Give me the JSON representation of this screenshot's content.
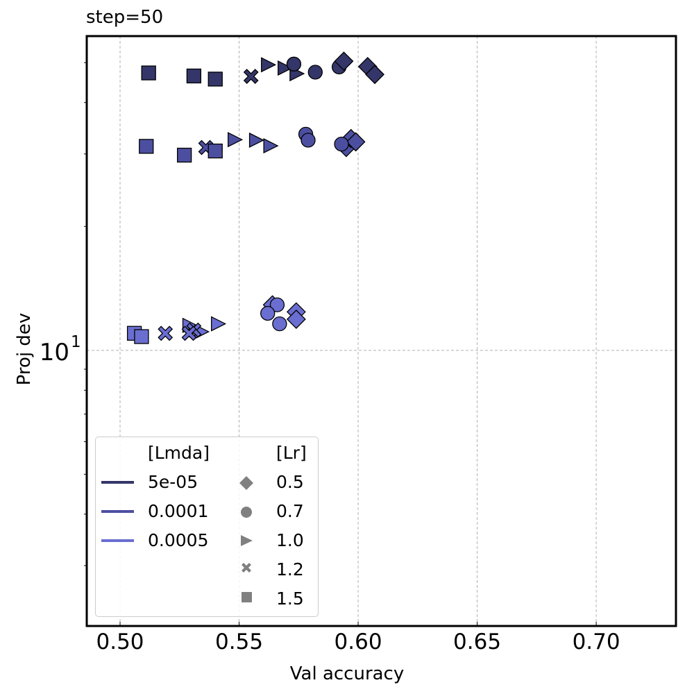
{
  "chart_data": {
    "type": "scatter",
    "title": "step=50",
    "xlabel": "Val accuracy",
    "ylabel": "Proj dev",
    "xlim": [
      0.486,
      0.7335
    ],
    "ylim": [
      2.14,
      58
    ],
    "yscale": "log",
    "xticks": [
      "0.50",
      "0.55",
      "0.60",
      "0.65",
      "0.70"
    ],
    "xtick_values": [
      0.5,
      0.55,
      0.6,
      0.65,
      0.7
    ],
    "yticks": [
      {
        "value": 10,
        "label": "10^1"
      }
    ],
    "grid": true,
    "legend_position": "lower left",
    "legend": {
      "color_title": "[Lmda]",
      "marker_title": "[Lr]",
      "colors": [
        {
          "label": "5e-05",
          "color": "#343669"
        },
        {
          "label": "0.0001",
          "color": "#4c4fa0"
        },
        {
          "label": "0.0005",
          "color": "#6a6ed0"
        }
      ],
      "markers": [
        {
          "label": "0.5",
          "marker": "diamond"
        },
        {
          "label": "0.7",
          "marker": "circle"
        },
        {
          "label": "1.0",
          "marker": "triangle-right"
        },
        {
          "label": "1.2",
          "marker": "x"
        },
        {
          "label": "1.5",
          "marker": "square"
        }
      ]
    },
    "series": [
      {
        "name": "5e-05",
        "color": "#343669",
        "points": [
          {
            "lr": "1.5",
            "marker": "square",
            "x": 0.512,
            "y": 47.2
          },
          {
            "lr": "1.5",
            "marker": "square",
            "x": 0.531,
            "y": 46.4
          },
          {
            "lr": "1.5",
            "marker": "square",
            "x": 0.54,
            "y": 45.6
          },
          {
            "lr": "1.2",
            "marker": "x",
            "x": 0.555,
            "y": 46.3
          },
          {
            "lr": "1.0",
            "marker": "triangle-right",
            "x": 0.562,
            "y": 49.4
          },
          {
            "lr": "1.0",
            "marker": "triangle-right",
            "x": 0.569,
            "y": 48.5
          },
          {
            "lr": "1.0",
            "marker": "triangle-right",
            "x": 0.574,
            "y": 47.0
          },
          {
            "lr": "0.7",
            "marker": "circle",
            "x": 0.573,
            "y": 49.6
          },
          {
            "lr": "0.7",
            "marker": "circle",
            "x": 0.582,
            "y": 47.4
          },
          {
            "lr": "0.7",
            "marker": "circle",
            "x": 0.592,
            "y": 48.8
          },
          {
            "lr": "0.5",
            "marker": "diamond",
            "x": 0.594,
            "y": 50.4
          },
          {
            "lr": "0.5",
            "marker": "diamond",
            "x": 0.604,
            "y": 48.9
          },
          {
            "lr": "0.5",
            "marker": "diamond",
            "x": 0.607,
            "y": 46.8
          }
        ]
      },
      {
        "name": "0.0001",
        "color": "#4c4fa0",
        "points": [
          {
            "lr": "1.5",
            "marker": "square",
            "x": 0.511,
            "y": 31.3
          },
          {
            "lr": "1.5",
            "marker": "square",
            "x": 0.527,
            "y": 29.8
          },
          {
            "lr": "1.2",
            "marker": "x",
            "x": 0.536,
            "y": 31.1
          },
          {
            "lr": "1.5",
            "marker": "square",
            "x": 0.54,
            "y": 30.5
          },
          {
            "lr": "1.0",
            "marker": "triangle-right",
            "x": 0.548,
            "y": 32.5
          },
          {
            "lr": "1.0",
            "marker": "triangle-right",
            "x": 0.557,
            "y": 32.4
          },
          {
            "lr": "1.0",
            "marker": "triangle-right",
            "x": 0.563,
            "y": 31.4
          },
          {
            "lr": "0.7",
            "marker": "circle",
            "x": 0.578,
            "y": 33.5
          },
          {
            "lr": "0.7",
            "marker": "circle",
            "x": 0.579,
            "y": 32.4
          },
          {
            "lr": "0.5",
            "marker": "diamond",
            "x": 0.595,
            "y": 31.1
          },
          {
            "lr": "0.5",
            "marker": "diamond",
            "x": 0.597,
            "y": 32.7
          },
          {
            "lr": "0.5",
            "marker": "diamond",
            "x": 0.599,
            "y": 32.1
          },
          {
            "lr": "0.7",
            "marker": "circle",
            "x": 0.593,
            "y": 31.7
          }
        ]
      },
      {
        "name": "0.0005",
        "color": "#6a6ed0",
        "points": [
          {
            "lr": "1.5",
            "marker": "square",
            "x": 0.506,
            "y": 11.0
          },
          {
            "lr": "1.5",
            "marker": "square",
            "x": 0.509,
            "y": 10.8
          },
          {
            "lr": "1.2",
            "marker": "x",
            "x": 0.519,
            "y": 11.0
          },
          {
            "lr": "1.0",
            "marker": "triangle-right",
            "x": 0.529,
            "y": 11.5
          },
          {
            "lr": "1.0",
            "marker": "triangle-right",
            "x": 0.534,
            "y": 11.1
          },
          {
            "lr": "1.2",
            "marker": "x",
            "x": 0.531,
            "y": 11.2
          },
          {
            "lr": "1.2",
            "marker": "x",
            "x": 0.529,
            "y": 11.0
          },
          {
            "lr": "1.0",
            "marker": "triangle-right",
            "x": 0.541,
            "y": 11.6
          },
          {
            "lr": "0.5",
            "marker": "diamond",
            "x": 0.564,
            "y": 12.9
          },
          {
            "lr": "0.7",
            "marker": "circle",
            "x": 0.566,
            "y": 12.9
          },
          {
            "lr": "0.7",
            "marker": "circle",
            "x": 0.562,
            "y": 12.3
          },
          {
            "lr": "0.7",
            "marker": "circle",
            "x": 0.567,
            "y": 11.6
          },
          {
            "lr": "0.5",
            "marker": "diamond",
            "x": 0.574,
            "y": 12.4
          },
          {
            "lr": "0.5",
            "marker": "diamond",
            "x": 0.574,
            "y": 11.9
          }
        ]
      }
    ]
  }
}
